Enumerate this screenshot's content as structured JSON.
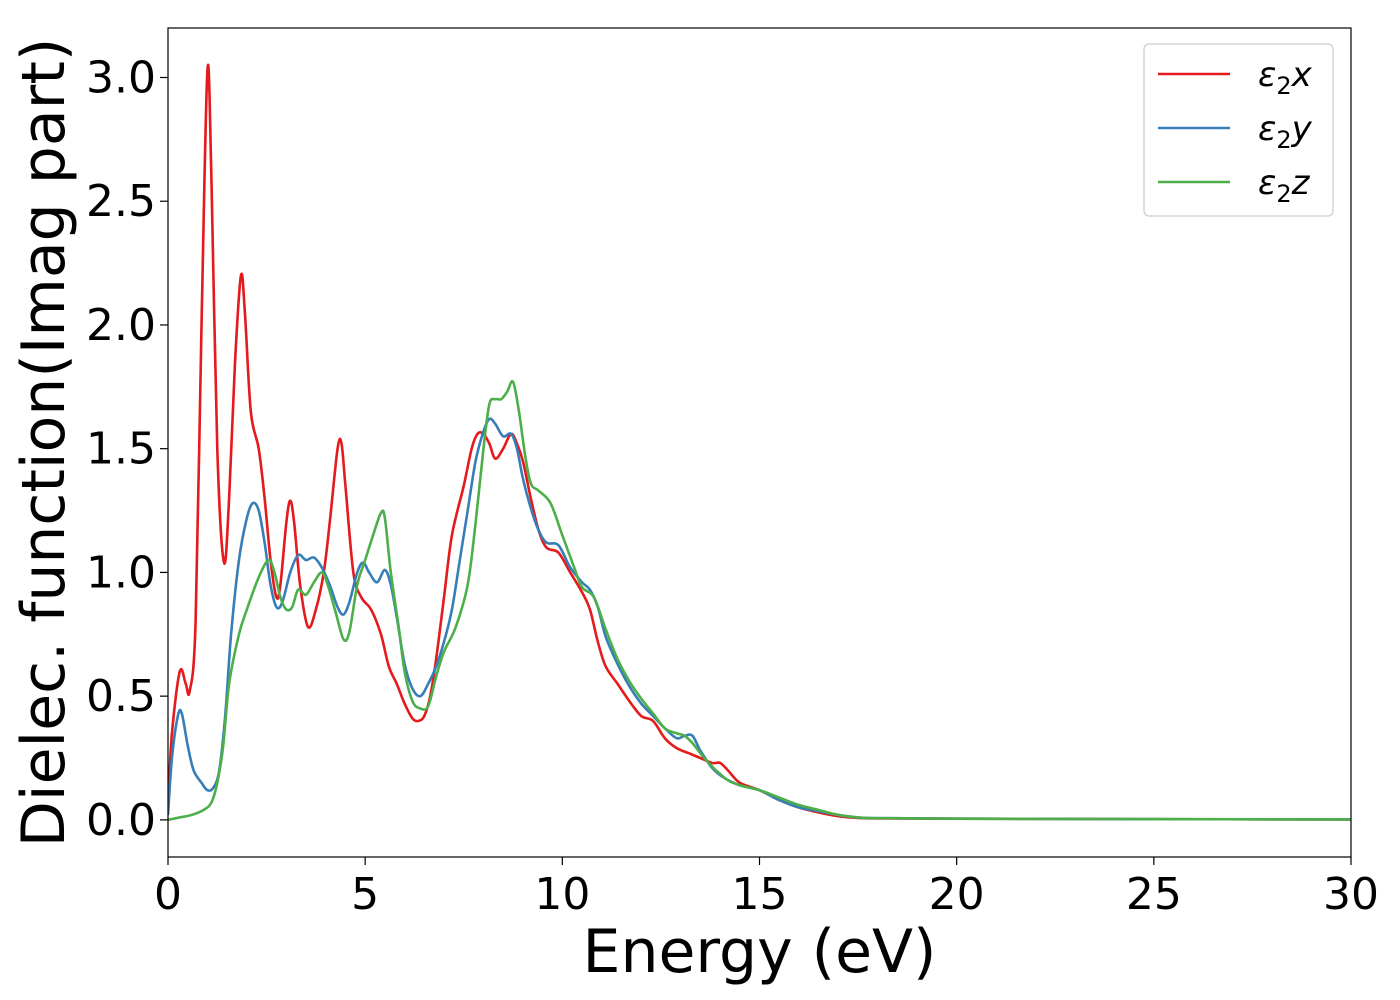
{
  "chart_data": {
    "type": "line",
    "title": "",
    "xlabel": "Energy (eV)",
    "ylabel": "Dielec. function(Imag part)",
    "xlim": [
      0,
      30
    ],
    "ylim": [
      -0.15,
      3.2
    ],
    "xticks": [
      0,
      5,
      10,
      15,
      20,
      25,
      30
    ],
    "xtick_labels": [
      "0",
      "5",
      "10",
      "15",
      "20",
      "25",
      "30"
    ],
    "yticks": [
      0.0,
      0.5,
      1.0,
      1.5,
      2.0,
      2.5,
      3.0
    ],
    "ytick_labels": [
      "0.0",
      "0.5",
      "1.0",
      "1.5",
      "2.0",
      "2.5",
      "3.0"
    ],
    "grid": false,
    "legend_position": "top-right",
    "series": [
      {
        "name": "ε₂x",
        "legend_base": "ε",
        "legend_sub": "2",
        "legend_suffix": "x",
        "color": "#e41a1c",
        "points": [
          [
            0,
            0.05
          ],
          [
            0.1,
            0.35
          ],
          [
            0.3,
            0.6
          ],
          [
            0.45,
            0.55
          ],
          [
            0.55,
            0.52
          ],
          [
            0.7,
            0.8
          ],
          [
            0.85,
            2.0
          ],
          [
            1.0,
            3.03
          ],
          [
            1.1,
            2.6
          ],
          [
            1.25,
            1.5
          ],
          [
            1.42,
            1.04
          ],
          [
            1.55,
            1.3
          ],
          [
            1.7,
            1.85
          ],
          [
            1.85,
            2.2
          ],
          [
            1.95,
            2.05
          ],
          [
            2.1,
            1.65
          ],
          [
            2.3,
            1.5
          ],
          [
            2.45,
            1.3
          ],
          [
            2.6,
            1.05
          ],
          [
            2.75,
            0.9
          ],
          [
            2.85,
            0.95
          ],
          [
            3.0,
            1.2
          ],
          [
            3.1,
            1.29
          ],
          [
            3.2,
            1.2
          ],
          [
            3.35,
            0.95
          ],
          [
            3.55,
            0.78
          ],
          [
            3.75,
            0.85
          ],
          [
            3.95,
            1.0
          ],
          [
            4.1,
            1.2
          ],
          [
            4.3,
            1.5
          ],
          [
            4.4,
            1.52
          ],
          [
            4.5,
            1.35
          ],
          [
            4.7,
            1.0
          ],
          [
            4.9,
            0.9
          ],
          [
            5.15,
            0.85
          ],
          [
            5.4,
            0.75
          ],
          [
            5.6,
            0.62
          ],
          [
            5.8,
            0.55
          ],
          [
            6.0,
            0.47
          ],
          [
            6.2,
            0.41
          ],
          [
            6.35,
            0.4
          ],
          [
            6.5,
            0.42
          ],
          [
            6.65,
            0.5
          ],
          [
            6.8,
            0.65
          ],
          [
            7.0,
            0.9
          ],
          [
            7.2,
            1.15
          ],
          [
            7.5,
            1.35
          ],
          [
            7.7,
            1.5
          ],
          [
            7.85,
            1.56
          ],
          [
            8.0,
            1.56
          ],
          [
            8.15,
            1.52
          ],
          [
            8.3,
            1.46
          ],
          [
            8.5,
            1.5
          ],
          [
            8.7,
            1.56
          ],
          [
            8.85,
            1.52
          ],
          [
            9.0,
            1.45
          ],
          [
            9.2,
            1.3
          ],
          [
            9.4,
            1.17
          ],
          [
            9.6,
            1.1
          ],
          [
            9.9,
            1.08
          ],
          [
            10.2,
            1.0
          ],
          [
            10.5,
            0.92
          ],
          [
            10.7,
            0.85
          ],
          [
            10.9,
            0.72
          ],
          [
            11.1,
            0.62
          ],
          [
            11.4,
            0.55
          ],
          [
            11.7,
            0.48
          ],
          [
            12.0,
            0.42
          ],
          [
            12.3,
            0.4
          ],
          [
            12.6,
            0.33
          ],
          [
            12.9,
            0.29
          ],
          [
            13.2,
            0.27
          ],
          [
            13.5,
            0.25
          ],
          [
            13.8,
            0.23
          ],
          [
            14.0,
            0.23
          ],
          [
            14.2,
            0.2
          ],
          [
            14.5,
            0.15
          ],
          [
            15.0,
            0.12
          ],
          [
            15.5,
            0.08
          ],
          [
            16.0,
            0.05
          ],
          [
            16.5,
            0.03
          ],
          [
            17.0,
            0.015
          ],
          [
            17.5,
            0.008
          ],
          [
            18.0,
            0.006
          ],
          [
            20.0,
            0.005
          ],
          [
            25.0,
            0.003
          ],
          [
            30.0,
            0.002
          ]
        ]
      },
      {
        "name": "ε₂y",
        "legend_base": "ε",
        "legend_sub": "2",
        "legend_suffix": "y",
        "color": "#377eb8",
        "points": [
          [
            0,
            0.02
          ],
          [
            0.1,
            0.25
          ],
          [
            0.25,
            0.42
          ],
          [
            0.35,
            0.43
          ],
          [
            0.5,
            0.3
          ],
          [
            0.65,
            0.2
          ],
          [
            0.85,
            0.15
          ],
          [
            1.0,
            0.12
          ],
          [
            1.15,
            0.13
          ],
          [
            1.3,
            0.2
          ],
          [
            1.45,
            0.42
          ],
          [
            1.6,
            0.75
          ],
          [
            1.8,
            1.05
          ],
          [
            2.0,
            1.22
          ],
          [
            2.15,
            1.28
          ],
          [
            2.3,
            1.25
          ],
          [
            2.45,
            1.12
          ],
          [
            2.6,
            0.95
          ],
          [
            2.75,
            0.86
          ],
          [
            2.9,
            0.88
          ],
          [
            3.1,
            1.0
          ],
          [
            3.3,
            1.07
          ],
          [
            3.5,
            1.05
          ],
          [
            3.7,
            1.06
          ],
          [
            3.9,
            1.02
          ],
          [
            4.1,
            0.95
          ],
          [
            4.3,
            0.86
          ],
          [
            4.45,
            0.83
          ],
          [
            4.6,
            0.88
          ],
          [
            4.8,
            1.0
          ],
          [
            4.95,
            1.04
          ],
          [
            5.1,
            1.0
          ],
          [
            5.3,
            0.96
          ],
          [
            5.5,
            1.01
          ],
          [
            5.65,
            0.95
          ],
          [
            5.8,
            0.82
          ],
          [
            6.0,
            0.63
          ],
          [
            6.2,
            0.53
          ],
          [
            6.4,
            0.5
          ],
          [
            6.6,
            0.55
          ],
          [
            6.8,
            0.62
          ],
          [
            7.0,
            0.72
          ],
          [
            7.2,
            0.85
          ],
          [
            7.4,
            1.05
          ],
          [
            7.6,
            1.25
          ],
          [
            7.8,
            1.45
          ],
          [
            8.0,
            1.57
          ],
          [
            8.15,
            1.62
          ],
          [
            8.3,
            1.6
          ],
          [
            8.5,
            1.55
          ],
          [
            8.7,
            1.56
          ],
          [
            8.85,
            1.5
          ],
          [
            9.0,
            1.38
          ],
          [
            9.2,
            1.26
          ],
          [
            9.4,
            1.17
          ],
          [
            9.6,
            1.12
          ],
          [
            9.9,
            1.11
          ],
          [
            10.2,
            1.02
          ],
          [
            10.5,
            0.96
          ],
          [
            10.7,
            0.93
          ],
          [
            10.9,
            0.86
          ],
          [
            11.1,
            0.74
          ],
          [
            11.4,
            0.63
          ],
          [
            11.7,
            0.54
          ],
          [
            12.0,
            0.47
          ],
          [
            12.3,
            0.42
          ],
          [
            12.6,
            0.37
          ],
          [
            12.9,
            0.33
          ],
          [
            13.1,
            0.34
          ],
          [
            13.3,
            0.34
          ],
          [
            13.5,
            0.28
          ],
          [
            13.8,
            0.21
          ],
          [
            14.1,
            0.17
          ],
          [
            14.5,
            0.14
          ],
          [
            15.0,
            0.12
          ],
          [
            15.5,
            0.08
          ],
          [
            16.0,
            0.05
          ],
          [
            16.5,
            0.035
          ],
          [
            17.0,
            0.02
          ],
          [
            17.5,
            0.01
          ],
          [
            18.0,
            0.007
          ],
          [
            20.0,
            0.005
          ],
          [
            25.0,
            0.003
          ],
          [
            30.0,
            0.002
          ]
        ]
      },
      {
        "name": "ε₂z",
        "legend_base": "ε",
        "legend_sub": "2",
        "legend_suffix": "z",
        "color": "#4daf4a",
        "points": [
          [
            0,
            0.0
          ],
          [
            0.3,
            0.01
          ],
          [
            0.6,
            0.02
          ],
          [
            0.9,
            0.04
          ],
          [
            1.1,
            0.07
          ],
          [
            1.25,
            0.15
          ],
          [
            1.4,
            0.3
          ],
          [
            1.55,
            0.55
          ],
          [
            1.8,
            0.75
          ],
          [
            2.0,
            0.85
          ],
          [
            2.3,
            0.98
          ],
          [
            2.55,
            1.05
          ],
          [
            2.7,
            1.0
          ],
          [
            2.85,
            0.9
          ],
          [
            3.0,
            0.85
          ],
          [
            3.15,
            0.86
          ],
          [
            3.3,
            0.93
          ],
          [
            3.5,
            0.91
          ],
          [
            3.7,
            0.96
          ],
          [
            3.9,
            1.0
          ],
          [
            4.05,
            0.95
          ],
          [
            4.25,
            0.84
          ],
          [
            4.45,
            0.73
          ],
          [
            4.6,
            0.76
          ],
          [
            4.8,
            0.95
          ],
          [
            5.0,
            1.05
          ],
          [
            5.2,
            1.15
          ],
          [
            5.4,
            1.24
          ],
          [
            5.5,
            1.22
          ],
          [
            5.65,
            1.0
          ],
          [
            5.85,
            0.78
          ],
          [
            6.0,
            0.6
          ],
          [
            6.2,
            0.48
          ],
          [
            6.4,
            0.45
          ],
          [
            6.6,
            0.46
          ],
          [
            6.8,
            0.58
          ],
          [
            7.0,
            0.68
          ],
          [
            7.3,
            0.78
          ],
          [
            7.6,
            0.95
          ],
          [
            7.8,
            1.2
          ],
          [
            8.0,
            1.5
          ],
          [
            8.15,
            1.68
          ],
          [
            8.3,
            1.7
          ],
          [
            8.45,
            1.7
          ],
          [
            8.6,
            1.73
          ],
          [
            8.75,
            1.77
          ],
          [
            8.9,
            1.65
          ],
          [
            9.05,
            1.48
          ],
          [
            9.2,
            1.36
          ],
          [
            9.4,
            1.33
          ],
          [
            9.7,
            1.28
          ],
          [
            10.0,
            1.15
          ],
          [
            10.3,
            1.02
          ],
          [
            10.5,
            0.94
          ],
          [
            10.8,
            0.9
          ],
          [
            11.1,
            0.77
          ],
          [
            11.4,
            0.65
          ],
          [
            11.7,
            0.56
          ],
          [
            12.0,
            0.49
          ],
          [
            12.3,
            0.43
          ],
          [
            12.6,
            0.37
          ],
          [
            12.9,
            0.35
          ],
          [
            13.1,
            0.34
          ],
          [
            13.3,
            0.31
          ],
          [
            13.6,
            0.25
          ],
          [
            13.9,
            0.2
          ],
          [
            14.2,
            0.16
          ],
          [
            14.5,
            0.14
          ],
          [
            15.0,
            0.12
          ],
          [
            15.5,
            0.09
          ],
          [
            16.0,
            0.06
          ],
          [
            16.5,
            0.04
          ],
          [
            17.0,
            0.02
          ],
          [
            17.5,
            0.01
          ],
          [
            18.0,
            0.007
          ],
          [
            20.0,
            0.005
          ],
          [
            25.0,
            0.003
          ],
          [
            30.0,
            0.002
          ]
        ]
      }
    ]
  }
}
